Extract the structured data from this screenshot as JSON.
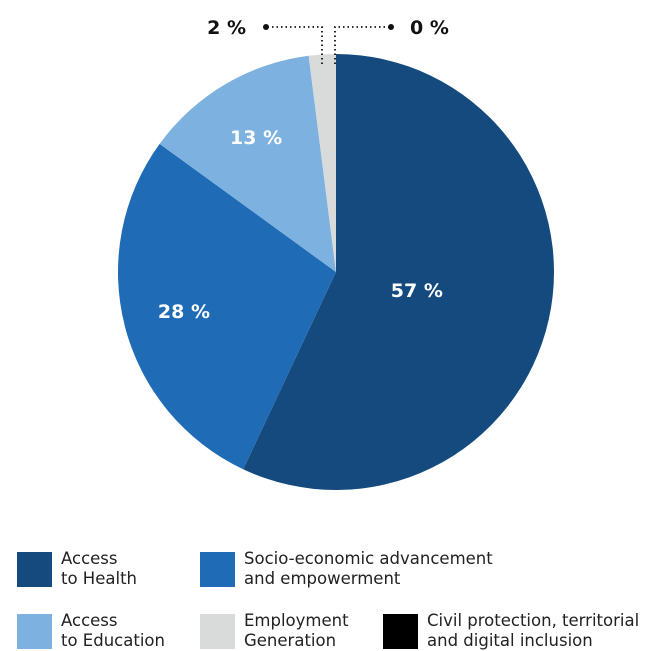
{
  "chart_data": {
    "type": "pie",
    "title": "",
    "slices": [
      {
        "label_line1": "Access",
        "label_line2": "to Health",
        "value": 57,
        "display": "57 %",
        "color": "#154a7f"
      },
      {
        "label_line1": "Socio-economic advancement",
        "label_line2": "and empowerment",
        "value": 28,
        "display": "28 %",
        "color": "#1f6bb5"
      },
      {
        "label_line1": "Access",
        "label_line2": "to Education",
        "value": 13,
        "display": "13 %",
        "color": "#7db2e0"
      },
      {
        "label_line1": "Employment",
        "label_line2": "Generation",
        "value": 2,
        "display": "2 %",
        "color": "#d9dbdb"
      },
      {
        "label_line1": "Civil protection, territorial",
        "label_line2": "and digital inclusion",
        "value": 0,
        "display": "0 %",
        "color": "#000000"
      }
    ],
    "legend_position": "bottom"
  }
}
